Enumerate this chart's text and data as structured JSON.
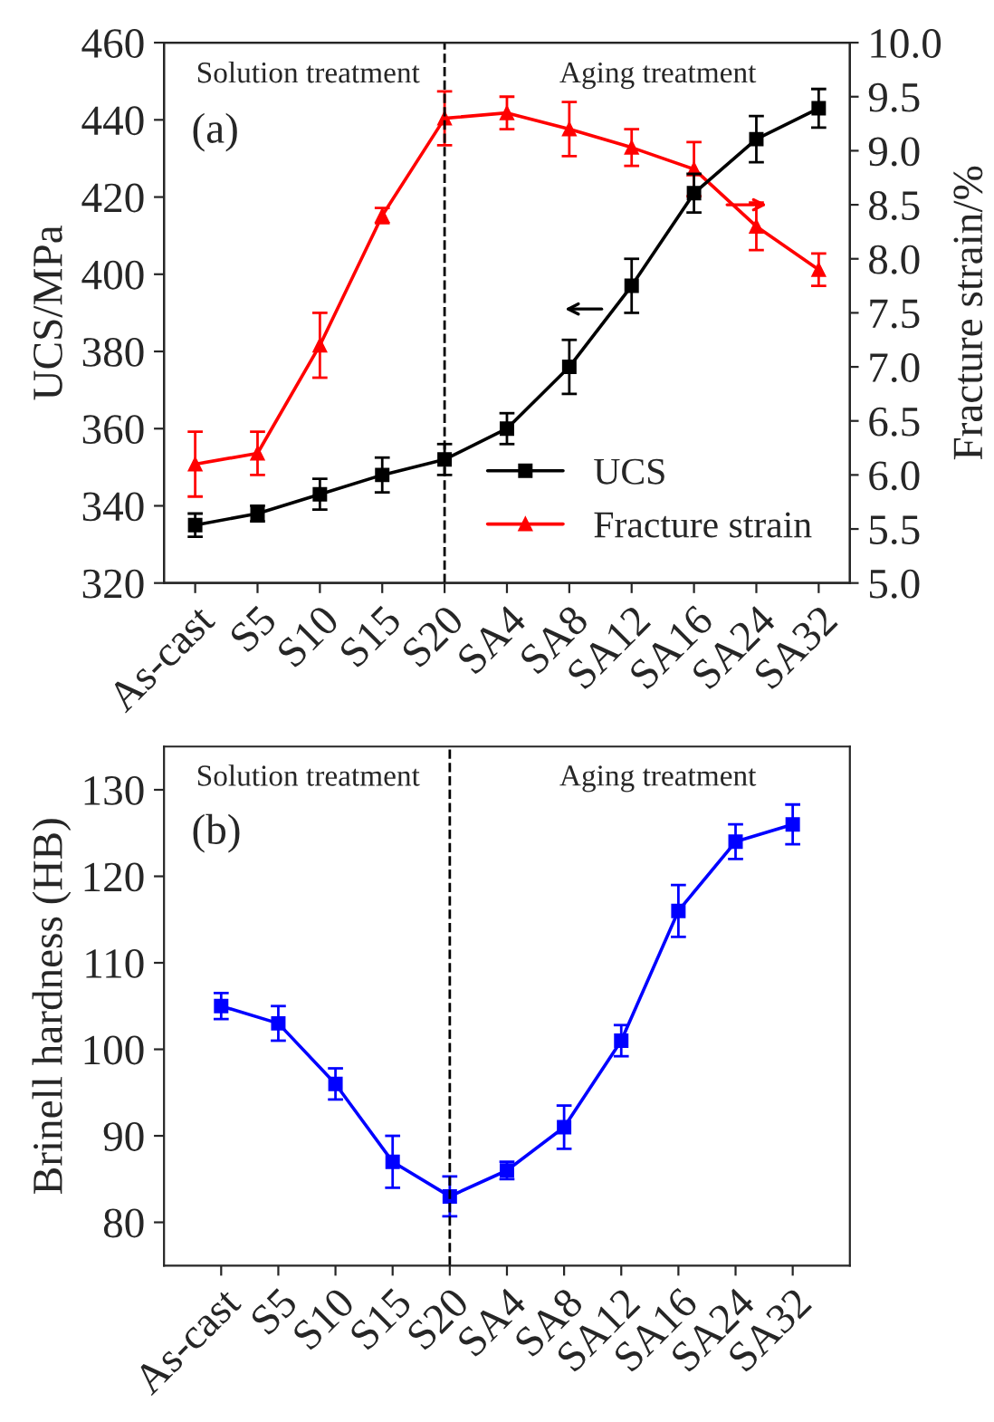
{
  "chart_data": [
    {
      "type": "line",
      "categories": [
        "As-cast",
        "S5",
        "S10",
        "S15",
        "S20",
        "SA4",
        "SA8",
        "SA12",
        "SA16",
        "SA24",
        "SA32"
      ],
      "ylabel": "UCS/MPa",
      "y2label": "Fracture strain/%",
      "series": [
        {
          "name": "UCS",
          "color": "#000000",
          "marker": "square",
          "values": [
            335,
            338,
            343,
            348,
            352,
            360,
            376,
            397,
            421,
            435,
            443
          ],
          "errors": [
            3,
            2,
            4,
            4.5,
            4,
            4,
            7,
            7,
            5,
            6,
            5
          ]
        },
        {
          "name": "Fracture strain",
          "color": "#ff0000",
          "marker": "triangle",
          "axis": "y2",
          "values": [
            6.1,
            6.2,
            7.2,
            8.4,
            9.3,
            9.35,
            9.2,
            9.03,
            8.83,
            8.3,
            7.9
          ],
          "errors": [
            0.3,
            0.2,
            0.3,
            0.07,
            0.25,
            0.15,
            0.25,
            0.17,
            0.25,
            0.22,
            0.15
          ]
        }
      ],
      "ylim": [
        320,
        460
      ],
      "yticks": [
        320,
        340,
        360,
        380,
        400,
        420,
        440,
        460
      ],
      "y2lim": [
        5.0,
        10.0
      ],
      "y2ticks": [
        {
          "value": 5.0,
          "label": "5.0"
        },
        {
          "value": 5.5,
          "label": "5.5"
        },
        {
          "value": 6.0,
          "label": "6.0"
        },
        {
          "value": 6.5,
          "label": "6.5"
        },
        {
          "value": 7.0,
          "label": "7.0"
        },
        {
          "value": 7.5,
          "label": "7.5"
        },
        {
          "value": 8.0,
          "label": "8.0"
        },
        {
          "value": 8.5,
          "label": "8.5"
        },
        {
          "value": 9.0,
          "label": "9.0"
        },
        {
          "value": 9.5,
          "label": "9.5"
        },
        {
          "value": 10.0,
          "label": "10.0"
        }
      ],
      "ref_lines": [
        {
          "axis": "x",
          "value": "S20",
          "line_style": "dashed",
          "color": "#000000"
        }
      ],
      "annotations": [
        "Solution treatment",
        "Aging treatment",
        "(a)"
      ],
      "legend": "bottom right",
      "grid": false,
      "line_style": "solid"
    },
    {
      "type": "line",
      "categories": [
        "As-cast",
        "S5",
        "S10",
        "S15",
        "S20",
        "SA4",
        "SA8",
        "SA12",
        "SA16",
        "SA24",
        "SA32"
      ],
      "ylabel": "Brinell hardness (HB)",
      "series": [
        {
          "color": "#0000ff",
          "marker": "square",
          "values": [
            105,
            103,
            96,
            87,
            83,
            86,
            91,
            101,
            116,
            124,
            126
          ],
          "errors": [
            1.5,
            2,
            1.8,
            3,
            2.3,
            1,
            2.5,
            1.8,
            3,
            2,
            2.3
          ]
        }
      ],
      "ylim": [
        75,
        135
      ],
      "yticks": [
        80,
        90,
        100,
        110,
        120,
        130
      ],
      "ref_lines": [
        {
          "axis": "x",
          "value": "S20",
          "line_style": "dashed",
          "color": "#000000"
        }
      ],
      "annotations": [
        "Solution treatment",
        "Aging treatment",
        "(b)"
      ],
      "legend": false,
      "grid": false,
      "line_style": "solid"
    }
  ]
}
